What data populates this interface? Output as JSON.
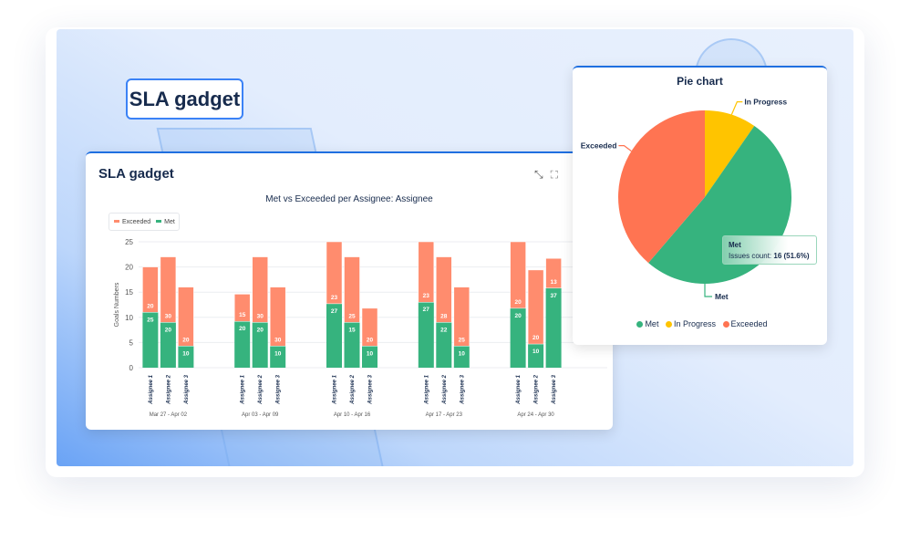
{
  "label": "SLA gadget",
  "gadget": {
    "title": "SLA gadget",
    "icons": [
      "minimize-icon",
      "fullscreen-icon"
    ],
    "chart_data": {
      "type": "bar",
      "stacked": true,
      "title": "Met vs Exceeded per Assignee: Assignee",
      "ylabel": "Goals Numbers",
      "ylim": [
        0,
        25
      ],
      "yticks": [
        "0",
        "5",
        "10",
        "15",
        "20",
        "25"
      ],
      "grid": true,
      "legend": {
        "position": "top-left",
        "items": [
          "Exceeded",
          "Met"
        ]
      },
      "colors": {
        "Exceeded": "#ff8c6e",
        "Met": "#36b37e"
      },
      "groups": [
        {
          "label": "Mar 27 - Apr 02",
          "categories": [
            "Assignee 1",
            "Assignee 2",
            "Assignee 3"
          ],
          "met": [
            11,
            9,
            4.3
          ],
          "exceeded": [
            9,
            13,
            11.7
          ],
          "met_labels": [
            "25",
            "20",
            "10"
          ],
          "exceeded_labels": [
            "20",
            "30",
            "20"
          ]
        },
        {
          "label": "Apr 03 - Apr 09",
          "categories": [
            "Assignee 1",
            "Assignee 2",
            "Assignee 3"
          ],
          "met": [
            9.2,
            9,
            4.3
          ],
          "exceeded": [
            5.4,
            13,
            11.7
          ],
          "met_labels": [
            "20",
            "20",
            "10"
          ],
          "exceeded_labels": [
            "15",
            "30",
            "30"
          ]
        },
        {
          "label": "Apr 10 - Apr 16",
          "categories": [
            "Assignee 1",
            "Assignee 2",
            "Assignee 3"
          ],
          "met": [
            12.7,
            9,
            4.3
          ],
          "exceeded": [
            12.3,
            13,
            7.5
          ],
          "met_labels": [
            "27",
            "15",
            "10"
          ],
          "exceeded_labels": [
            "23",
            "25",
            "20"
          ]
        },
        {
          "label": "Apr 17 - Apr 23",
          "categories": [
            "Assignee 1",
            "Assignee 2",
            "Assignee 3"
          ],
          "met": [
            13,
            9,
            4.3
          ],
          "exceeded": [
            12,
            13,
            11.7
          ],
          "met_labels": [
            "27",
            "22",
            "10"
          ],
          "exceeded_labels": [
            "23",
            "28",
            "25"
          ]
        },
        {
          "label": "Apr 24 - Apr 30",
          "categories": [
            "Assignee 1",
            "Assignee 2",
            "Assignee 3"
          ],
          "met": [
            11.8,
            4.7,
            15.8
          ],
          "exceeded": [
            13.2,
            14.7,
            5.9
          ],
          "met_labels": [
            "20",
            "10",
            "37"
          ],
          "exceeded_labels": [
            "20",
            "20",
            "13"
          ]
        }
      ]
    }
  },
  "pie": {
    "title": "Pie chart",
    "chart_data": {
      "type": "pie",
      "slices": [
        {
          "name": "In Progress",
          "value": 3,
          "color": "#ffc400"
        },
        {
          "name": "Met",
          "value": 16,
          "color": "#36b37e"
        },
        {
          "name": "Exceeded",
          "value": 12,
          "color": "#ff7452"
        }
      ],
      "legend": {
        "position": "bottom",
        "items": [
          "Met",
          "In Progress",
          "Exceeded"
        ]
      }
    },
    "tooltip": {
      "title": "Met",
      "label": "Issues count:",
      "value": "16 (51.6%)"
    }
  }
}
